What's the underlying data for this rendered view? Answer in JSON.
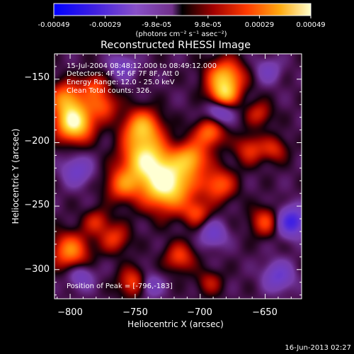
{
  "colorbar": {
    "tick_labels": [
      "-0.00049",
      "-0.00029",
      "-9.8e-05",
      "9.8e-05",
      "0.00029",
      "0.00049"
    ],
    "units_label": "(photons cm⁻² s⁻¹ asec⁻²)",
    "range": [
      -0.00049,
      0.00049
    ]
  },
  "chart_data": {
    "type": "heatmap",
    "title": "Reconstructed RHESSI Image",
    "xlabel": "Heliocentric X (arcsec)",
    "ylabel": "Heliocentric Y (arcsec)",
    "xlim": [
      -812,
      -622
    ],
    "ylim": [
      -323,
      -130
    ],
    "x_ticks": [
      -800,
      -750,
      -700,
      -650
    ],
    "y_ticks": [
      -150,
      -200,
      -250,
      -300
    ],
    "x_tick_labels": [
      "−800",
      "−750",
      "−700",
      "−650"
    ],
    "y_tick_labels": [
      "−150",
      "−200",
      "−250",
      "−300"
    ],
    "annotations": [
      "15-Jul-2004 08:48:12.000 to 08:49:12.000",
      "Detectors: 4F 5F 6F 7F 8F, Att 0",
      "Energy Range: 12.0 - 25.0 keV",
      "Clean    Total counts: 326."
    ],
    "peak_label": "Position of Peak = [-796,-183]",
    "peak": {
      "x": -796,
      "y": -183
    },
    "blobs": [
      {
        "x": -726,
        "y": -232,
        "amp": 1.0,
        "s": 14
      },
      {
        "x": -743,
        "y": -212,
        "amp": 0.75,
        "s": 12
      },
      {
        "x": -745,
        "y": -188,
        "amp": 0.65,
        "s": 10
      },
      {
        "x": -707,
        "y": -212,
        "amp": 0.55,
        "s": 9
      },
      {
        "x": -693,
        "y": -192,
        "amp": 0.5,
        "s": 8
      },
      {
        "x": -686,
        "y": -233,
        "amp": 0.45,
        "s": 9
      },
      {
        "x": -681,
        "y": -149,
        "amp": 0.7,
        "s": 10
      },
      {
        "x": -682,
        "y": -163,
        "amp": 0.55,
        "s": 7
      },
      {
        "x": -797,
        "y": -184,
        "amp": 0.95,
        "s": 10
      },
      {
        "x": -803,
        "y": -165,
        "amp": 0.55,
        "s": 9
      },
      {
        "x": -800,
        "y": -285,
        "amp": 0.55,
        "s": 10
      },
      {
        "x": -760,
        "y": -233,
        "amp": 0.45,
        "s": 9
      },
      {
        "x": -775,
        "y": -170,
        "amp": 0.4,
        "s": 8
      },
      {
        "x": -782,
        "y": -155,
        "amp": 0.35,
        "s": 7
      },
      {
        "x": -751,
        "y": -310,
        "amp": 0.45,
        "s": 8
      },
      {
        "x": -716,
        "y": -290,
        "amp": 0.38,
        "s": 8
      },
      {
        "x": -703,
        "y": -255,
        "amp": 0.35,
        "s": 7
      },
      {
        "x": -662,
        "y": -205,
        "amp": 0.35,
        "s": 8
      },
      {
        "x": -650,
        "y": -262,
        "amp": 0.4,
        "s": 8
      },
      {
        "x": -643,
        "y": -205,
        "amp": 0.3,
        "s": 7
      },
      {
        "x": -766,
        "y": -275,
        "amp": 0.35,
        "s": 8
      },
      {
        "x": -780,
        "y": -262,
        "amp": 0.3,
        "s": 7
      },
      {
        "x": -655,
        "y": -177,
        "amp": 0.3,
        "s": 7
      },
      {
        "x": -693,
        "y": -310,
        "amp": 0.25,
        "s": 7
      },
      {
        "x": -630,
        "y": -262,
        "amp": -0.65,
        "s": 8
      },
      {
        "x": -685,
        "y": -175,
        "amp": -0.4,
        "s": 7
      },
      {
        "x": -690,
        "y": -272,
        "amp": -0.35,
        "s": 7
      },
      {
        "x": -740,
        "y": -312,
        "amp": -0.35,
        "s": 7
      },
      {
        "x": -795,
        "y": -222,
        "amp": -0.35,
        "s": 8
      },
      {
        "x": -640,
        "y": -305,
        "amp": -0.4,
        "s": 8
      },
      {
        "x": -760,
        "y": -140,
        "amp": -0.3,
        "s": 7
      },
      {
        "x": -792,
        "y": -305,
        "amp": -0.3,
        "s": 7
      },
      {
        "x": -648,
        "y": -143,
        "amp": -0.25,
        "s": 7
      }
    ]
  },
  "footer": {
    "timestamp": "16-Jun-2013 02:27"
  }
}
